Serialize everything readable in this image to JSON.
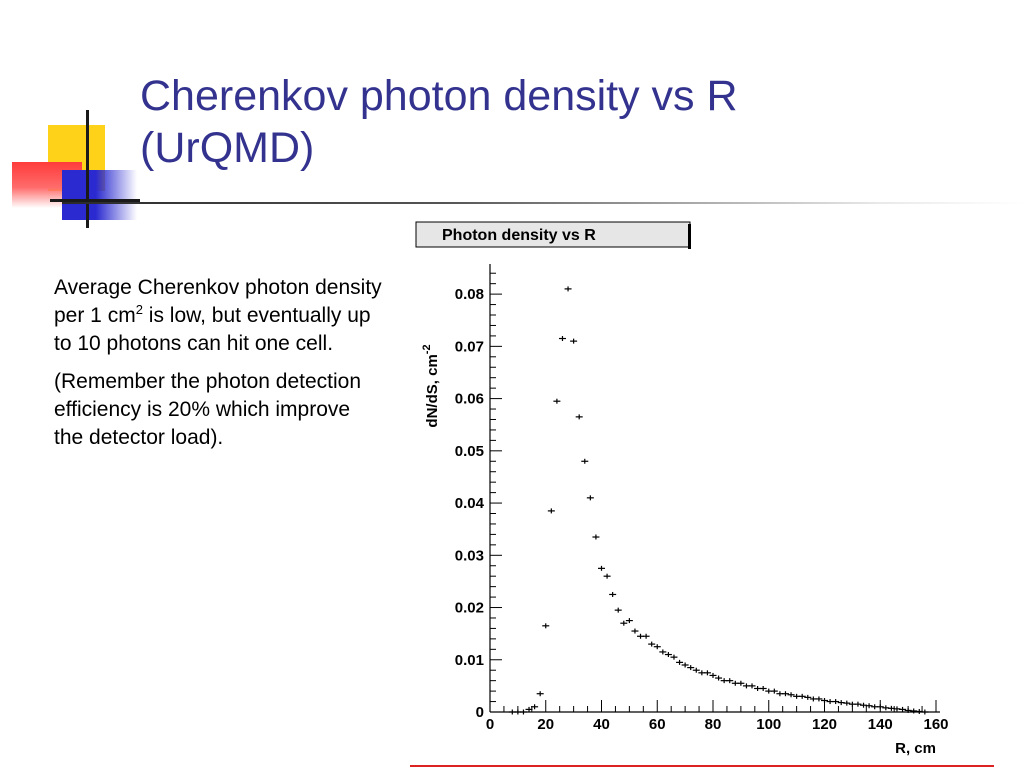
{
  "slide": {
    "title_line1": "Cherenkov photon density vs R",
    "title_line2": "(UrQMD)",
    "body_p1_text": "Average Cherenkov photon density per 1 cm",
    "body_p1_sup": "2",
    "body_p1_rest": " is low, but eventually up to 10 photons can hit one cell.",
    "body_p2": "(Remember the photon detection efficiency is 20% which improve the detector load)."
  },
  "chart_data": {
    "type": "scatter",
    "title": "Photon density vs R",
    "xlabel": "R, cm",
    "ylabel_main": "dN/dS, cm",
    "ylabel_sup": "-2",
    "xlim": [
      0,
      160
    ],
    "ylim": [
      0,
      0.085
    ],
    "xticks": [
      "0",
      "20",
      "40",
      "60",
      "80",
      "100",
      "120",
      "140",
      "160"
    ],
    "yticks": [
      "0",
      "0.01",
      "0.02",
      "0.03",
      "0.04",
      "0.05",
      "0.06",
      "0.07",
      "0.08"
    ],
    "grid": false,
    "points": {
      "x": [
        8,
        10,
        12,
        14,
        16,
        18,
        20,
        22,
        24,
        26,
        28,
        30,
        32,
        34,
        36,
        38,
        40,
        42,
        44,
        46,
        48,
        50,
        52,
        54,
        56,
        58,
        60,
        62,
        64,
        66,
        68,
        70,
        72,
        74,
        76,
        78,
        80,
        82,
        84,
        86,
        88,
        90,
        92,
        94,
        96,
        98,
        100,
        102,
        104,
        106,
        108,
        110,
        112,
        114,
        116,
        118,
        120,
        122,
        124,
        126,
        128,
        130,
        132,
        134,
        136,
        138,
        140,
        142,
        144,
        146,
        148,
        150,
        152,
        154,
        156
      ],
      "y": [
        0.0,
        0.0,
        0.0,
        0.0005,
        0.001,
        0.0035,
        0.0165,
        0.0385,
        0.0595,
        0.0715,
        0.081,
        0.071,
        0.0565,
        0.048,
        0.041,
        0.0335,
        0.0275,
        0.026,
        0.0225,
        0.0195,
        0.017,
        0.0175,
        0.0155,
        0.0145,
        0.0145,
        0.013,
        0.0125,
        0.0115,
        0.011,
        0.0105,
        0.0095,
        0.009,
        0.0085,
        0.008,
        0.0075,
        0.0075,
        0.007,
        0.0065,
        0.006,
        0.006,
        0.0055,
        0.0055,
        0.005,
        0.005,
        0.0045,
        0.0045,
        0.004,
        0.004,
        0.0035,
        0.0035,
        0.0033,
        0.003,
        0.003,
        0.0028,
        0.0025,
        0.0025,
        0.0022,
        0.002,
        0.002,
        0.0018,
        0.0017,
        0.0015,
        0.0015,
        0.0013,
        0.0012,
        0.001,
        0.001,
        0.0008,
        0.0007,
        0.0006,
        0.0005,
        0.0003,
        0.0002,
        0.0001,
        0.0
      ]
    }
  }
}
